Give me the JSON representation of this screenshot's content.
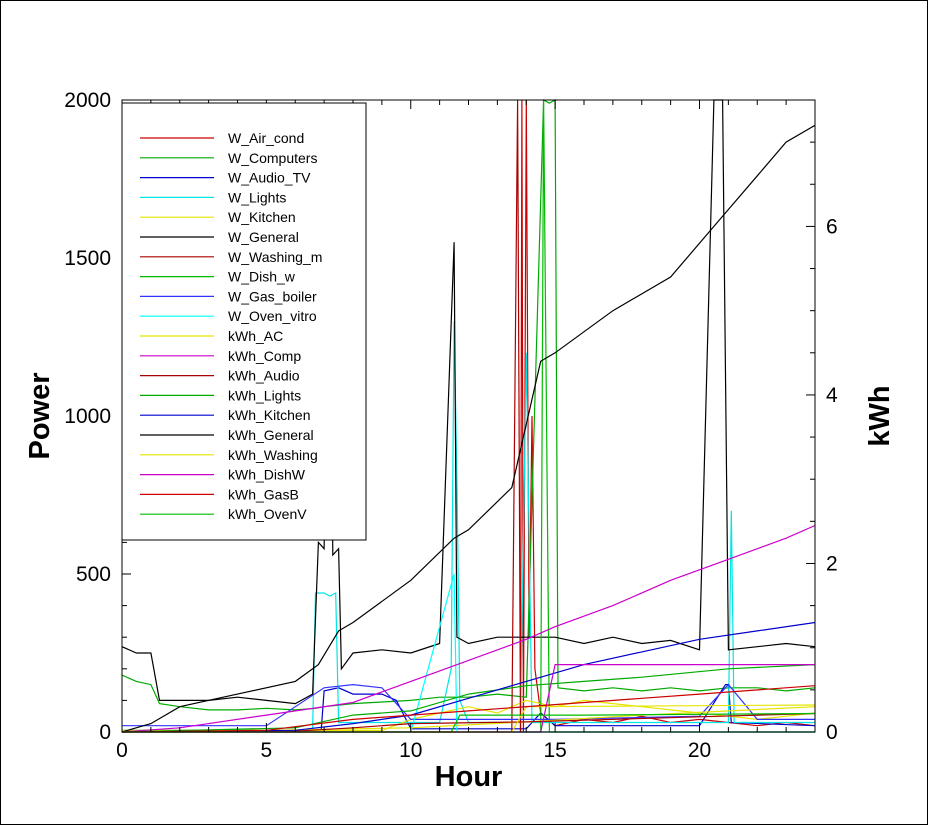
{
  "chart_data": {
    "type": "line",
    "title": "",
    "xlabel": "Hour",
    "ylabel": "Power",
    "y2label": "kWh",
    "xlim": [
      0,
      24
    ],
    "ylim": [
      0,
      2000
    ],
    "y2lim": [
      0,
      7.5
    ],
    "grid": false,
    "legend_position": "upper-left",
    "x_ticks": [
      "0",
      "5",
      "10",
      "15",
      "20"
    ],
    "x_tick_values": [
      0,
      5,
      10,
      15,
      20
    ],
    "y_ticks": [
      "0",
      "500",
      "1000",
      "1500",
      "2000"
    ],
    "y_tick_values": [
      0,
      500,
      1000,
      1500,
      2000
    ],
    "y2_ticks": [
      "0",
      "2",
      "4",
      "6"
    ],
    "y2_tick_values": [
      0,
      2,
      4,
      6
    ],
    "series": [
      {
        "name": "W_Air_cond",
        "axis": "left",
        "color": "#cc0000",
        "points": [
          [
            0,
            0
          ],
          [
            13.8,
            0
          ],
          [
            13.85,
            2000
          ],
          [
            13.9,
            0
          ],
          [
            14.0,
            2000
          ],
          [
            14.1,
            300
          ],
          [
            14.2,
            1000
          ],
          [
            14.3,
            200
          ],
          [
            14.5,
            60
          ],
          [
            15,
            20
          ],
          [
            16,
            40
          ],
          [
            17,
            30
          ],
          [
            18,
            50
          ],
          [
            19,
            30
          ],
          [
            20,
            40
          ],
          [
            21,
            30
          ],
          [
            22,
            20
          ],
          [
            23,
            30
          ],
          [
            24,
            20
          ]
        ]
      },
      {
        "name": "W_Computers",
        "axis": "left",
        "color": "#00aa00",
        "points": [
          [
            0,
            180
          ],
          [
            0.5,
            160
          ],
          [
            1,
            150
          ],
          [
            1.3,
            90
          ],
          [
            2,
            80
          ],
          [
            3,
            70
          ],
          [
            4,
            70
          ],
          [
            5,
            75
          ],
          [
            6,
            70
          ],
          [
            6.7,
            75
          ],
          [
            7,
            80
          ],
          [
            8,
            90
          ],
          [
            9,
            95
          ],
          [
            10,
            100
          ],
          [
            11,
            110
          ],
          [
            12,
            110
          ],
          [
            13,
            120
          ],
          [
            14,
            110
          ],
          [
            14.6,
            2000
          ],
          [
            14.8,
            1990
          ],
          [
            15,
            2000
          ],
          [
            15.1,
            140
          ],
          [
            16,
            130
          ],
          [
            17,
            140
          ],
          [
            18,
            130
          ],
          [
            19,
            140
          ],
          [
            20,
            130
          ],
          [
            21,
            140
          ],
          [
            22,
            140
          ],
          [
            23,
            130
          ],
          [
            24,
            140
          ]
        ]
      },
      {
        "name": "W_Audio_TV",
        "axis": "left",
        "color": "#0000cc",
        "points": [
          [
            0,
            5
          ],
          [
            6.9,
            5
          ],
          [
            7,
            130
          ],
          [
            7.5,
            140
          ],
          [
            8,
            120
          ],
          [
            9,
            120
          ],
          [
            9.5,
            100
          ],
          [
            10,
            10
          ],
          [
            14,
            10
          ],
          [
            14.5,
            60
          ],
          [
            15,
            20
          ],
          [
            20,
            20
          ],
          [
            20.9,
            150
          ],
          [
            21,
            150
          ],
          [
            21.1,
            30
          ],
          [
            24,
            20
          ]
        ]
      },
      {
        "name": "W_Lights",
        "axis": "left",
        "color": "#00e5e5",
        "points": [
          [
            0,
            5
          ],
          [
            6.6,
            5
          ],
          [
            6.7,
            440
          ],
          [
            7,
            440
          ],
          [
            7.2,
            430
          ],
          [
            7.4,
            440
          ],
          [
            7.5,
            30
          ],
          [
            11,
            30
          ],
          [
            11.4,
            200
          ],
          [
            11.5,
            1300
          ],
          [
            11.6,
            800
          ],
          [
            11.7,
            100
          ],
          [
            12,
            30
          ],
          [
            13.8,
            30
          ],
          [
            14,
            1200
          ],
          [
            14.2,
            30
          ],
          [
            21,
            30
          ],
          [
            21.1,
            700
          ],
          [
            21.2,
            30
          ],
          [
            24,
            30
          ]
        ]
      },
      {
        "name": "W_Kitchen",
        "axis": "left",
        "color": "#e5e500",
        "points": [
          [
            0,
            5
          ],
          [
            9,
            5
          ],
          [
            10,
            40
          ],
          [
            11,
            60
          ],
          [
            12,
            80
          ],
          [
            13,
            60
          ],
          [
            14,
            100
          ],
          [
            15,
            80
          ],
          [
            16,
            100
          ],
          [
            17,
            90
          ],
          [
            18,
            80
          ],
          [
            19,
            70
          ],
          [
            20,
            60
          ],
          [
            21,
            50
          ],
          [
            22,
            40
          ],
          [
            23,
            50
          ],
          [
            24,
            60
          ]
        ]
      },
      {
        "name": "W_General",
        "axis": "left",
        "color": "#000000",
        "points": [
          [
            0,
            270
          ],
          [
            0.5,
            250
          ],
          [
            1,
            250
          ],
          [
            1.3,
            100
          ],
          [
            2,
            100
          ],
          [
            3,
            100
          ],
          [
            4,
            110
          ],
          [
            5,
            100
          ],
          [
            6,
            90
          ],
          [
            6.6,
            120
          ],
          [
            6.8,
            600
          ],
          [
            7,
            580
          ],
          [
            7.2,
            1600
          ],
          [
            7.3,
            560
          ],
          [
            7.5,
            580
          ],
          [
            7.6,
            200
          ],
          [
            8,
            250
          ],
          [
            9,
            260
          ],
          [
            10,
            250
          ],
          [
            11,
            280
          ],
          [
            11.5,
            1550
          ],
          [
            11.6,
            300
          ],
          [
            12,
            280
          ],
          [
            13,
            300
          ],
          [
            14,
            300
          ],
          [
            15,
            300
          ],
          [
            16,
            280
          ],
          [
            17,
            300
          ],
          [
            18,
            280
          ],
          [
            19,
            290
          ],
          [
            20,
            260
          ],
          [
            20.5,
            2000
          ],
          [
            20.8,
            2000
          ],
          [
            21,
            260
          ],
          [
            22,
            270
          ],
          [
            23,
            280
          ],
          [
            24,
            270
          ]
        ]
      },
      {
        "name": "W_Washing_m",
        "axis": "left",
        "color": "#aa0000",
        "points": [
          [
            0,
            0
          ],
          [
            13.5,
            0
          ],
          [
            13.7,
            2000
          ],
          [
            13.8,
            0
          ],
          [
            24,
            0
          ]
        ]
      },
      {
        "name": "W_Dish_w",
        "axis": "left",
        "color": "#00bb00",
        "points": [
          [
            0,
            0
          ],
          [
            14.5,
            0
          ],
          [
            14.6,
            2000
          ],
          [
            14.8,
            0
          ],
          [
            24,
            0
          ]
        ]
      },
      {
        "name": "W_Gas_boiler",
        "axis": "left",
        "color": "#3333ff",
        "points": [
          [
            0,
            20
          ],
          [
            5,
            20
          ],
          [
            7,
            140
          ],
          [
            8,
            150
          ],
          [
            9,
            140
          ],
          [
            10,
            40
          ],
          [
            15,
            40
          ],
          [
            20,
            50
          ],
          [
            21,
            150
          ],
          [
            22,
            40
          ],
          [
            24,
            40
          ]
        ]
      },
      {
        "name": "W_Oven_vitro",
        "axis": "left",
        "color": "#00ffff",
        "points": [
          [
            0,
            0
          ],
          [
            10,
            0
          ],
          [
            11.5,
            500
          ],
          [
            11.6,
            0
          ],
          [
            24,
            0
          ]
        ]
      },
      {
        "name": "kWh_AC",
        "axis": "right",
        "color": "#e5e500",
        "points": [
          [
            0,
            0
          ],
          [
            5,
            0.02
          ],
          [
            10,
            0.05
          ],
          [
            14,
            0.12
          ],
          [
            18,
            0.2
          ],
          [
            24,
            0.3
          ]
        ]
      },
      {
        "name": "kWh_Comp",
        "axis": "right",
        "color": "#cc00cc",
        "points": [
          [
            0,
            0
          ],
          [
            2,
            0.05
          ],
          [
            5,
            0.2
          ],
          [
            8,
            0.35
          ],
          [
            10,
            0.6
          ],
          [
            12,
            0.85
          ],
          [
            14,
            1.1
          ],
          [
            15,
            1.25
          ],
          [
            17,
            1.5
          ],
          [
            19,
            1.8
          ],
          [
            21,
            2.05
          ],
          [
            23,
            2.3
          ],
          [
            24,
            2.45
          ]
        ]
      },
      {
        "name": "kWh_Audio",
        "axis": "right",
        "color": "#aa0000",
        "points": [
          [
            0,
            0
          ],
          [
            6,
            0.01
          ],
          [
            8,
            0.05
          ],
          [
            10,
            0.1
          ],
          [
            14,
            0.12
          ],
          [
            20,
            0.18
          ],
          [
            24,
            0.22
          ]
        ]
      },
      {
        "name": "kWh_Lights",
        "axis": "right",
        "color": "#00aa00",
        "points": [
          [
            0,
            0
          ],
          [
            6,
            0.05
          ],
          [
            8,
            0.2
          ],
          [
            10,
            0.25
          ],
          [
            12,
            0.45
          ],
          [
            14,
            0.55
          ],
          [
            16,
            0.6
          ],
          [
            18,
            0.65
          ],
          [
            21,
            0.75
          ],
          [
            24,
            0.8
          ]
        ]
      },
      {
        "name": "kWh_Kitchen",
        "axis": "right",
        "color": "#0000cc",
        "points": [
          [
            0,
            0
          ],
          [
            6,
            0.02
          ],
          [
            8,
            0.1
          ],
          [
            10,
            0.2
          ],
          [
            12,
            0.4
          ],
          [
            14,
            0.6
          ],
          [
            16,
            0.8
          ],
          [
            18,
            0.95
          ],
          [
            20,
            1.1
          ],
          [
            22,
            1.2
          ],
          [
            24,
            1.3
          ]
        ]
      },
      {
        "name": "kWh_General",
        "axis": "right",
        "color": "#000000",
        "points": [
          [
            0,
            0
          ],
          [
            1,
            0.1
          ],
          [
            2,
            0.3
          ],
          [
            4,
            0.45
          ],
          [
            6,
            0.6
          ],
          [
            6.8,
            0.8
          ],
          [
            7.5,
            1.2
          ],
          [
            8,
            1.3
          ],
          [
            10,
            1.8
          ],
          [
            11.5,
            2.3
          ],
          [
            12,
            2.4
          ],
          [
            13.5,
            2.9
          ],
          [
            14.5,
            4.4
          ],
          [
            15,
            4.5
          ],
          [
            17,
            5.0
          ],
          [
            19,
            5.4
          ],
          [
            20.5,
            6.0
          ],
          [
            21,
            6.2
          ],
          [
            22,
            6.6
          ],
          [
            23,
            7.0
          ],
          [
            24,
            7.2
          ]
        ]
      },
      {
        "name": "kWh_Washing",
        "axis": "right",
        "color": "#e5e500",
        "points": [
          [
            0,
            0
          ],
          [
            13.5,
            0
          ],
          [
            14,
            0.3
          ],
          [
            24,
            0.32
          ]
        ]
      },
      {
        "name": "kWh_DishW",
        "axis": "right",
        "color": "#cc00cc",
        "points": [
          [
            0,
            0
          ],
          [
            14.5,
            0
          ],
          [
            15,
            0.8
          ],
          [
            24,
            0.8
          ]
        ]
      },
      {
        "name": "kWh_GasB",
        "axis": "right",
        "color": "#cc0000",
        "points": [
          [
            0,
            0
          ],
          [
            5,
            0.02
          ],
          [
            8,
            0.15
          ],
          [
            12,
            0.25
          ],
          [
            16,
            0.35
          ],
          [
            20,
            0.45
          ],
          [
            24,
            0.55
          ]
        ]
      },
      {
        "name": "kWh_OvenV",
        "axis": "right",
        "color": "#00bb00",
        "points": [
          [
            0,
            0
          ],
          [
            11.4,
            0
          ],
          [
            11.7,
            0.2
          ],
          [
            16,
            0.2
          ],
          [
            24,
            0.22
          ]
        ]
      }
    ]
  }
}
